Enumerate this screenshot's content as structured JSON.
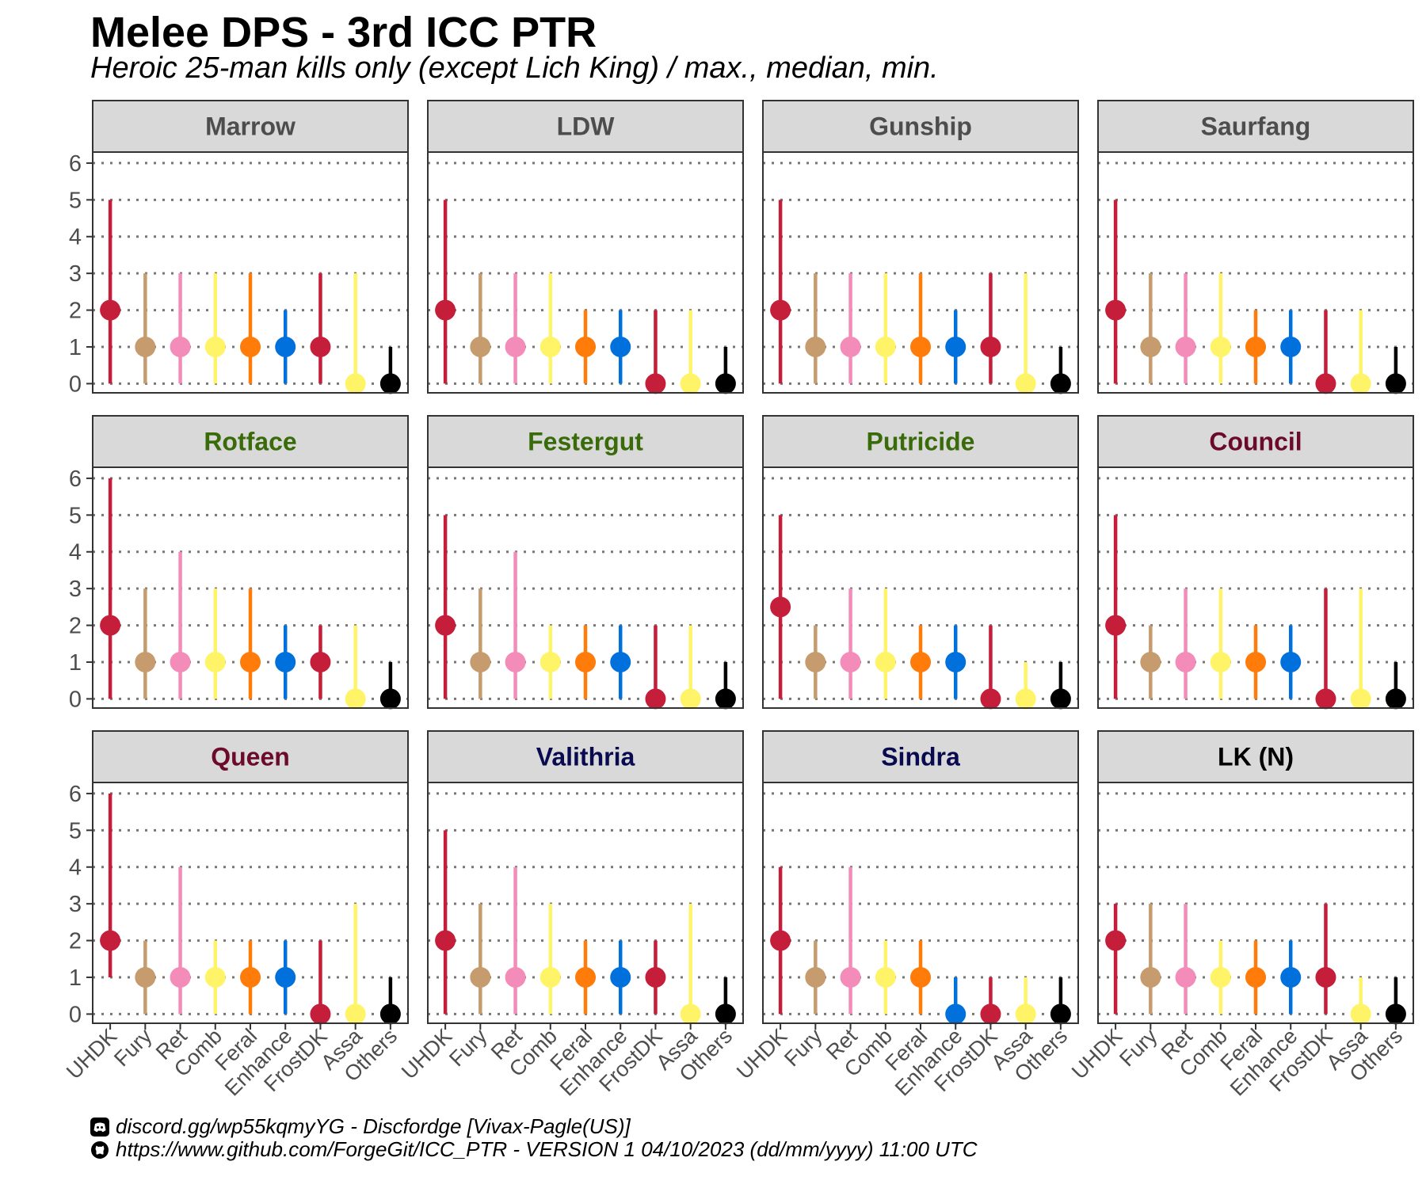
{
  "title": "Melee DPS - 3rd ICC PTR",
  "subtitle": "Heroic 25-man kills only (except Lich King) / max., median, min.",
  "footer": {
    "discord_line": "discord.gg/wp55kqmyYG - Discfordge [Vivax-Pagle(US)]",
    "github_line": "https://www.github.com/ForgeGit/ICC_PTR - VERSION 1 04/10/2023 (dd/mm/yyyy) 11:00 UTC",
    "discord_icon": "discord-icon",
    "github_icon": "github-icon"
  },
  "chart_data": {
    "type": "pointrange",
    "categories": [
      "UHDK",
      "Fury",
      "Ret",
      "Comb",
      "Feral",
      "Enhance",
      "FrostDK",
      "Assa",
      "Others"
    ],
    "category_colors": [
      "#C41E3A",
      "#C69B6D",
      "#F48CBA",
      "#FFF468",
      "#FF7C0A",
      "#0070DD",
      "#C41E3A",
      "#FFF468",
      "#000000"
    ],
    "yticks": [
      0,
      1,
      2,
      3,
      4,
      5,
      6
    ],
    "ylim": [
      -0.25,
      6.3
    ],
    "grid": "dotted horizontal",
    "panels": [
      {
        "name": "Marrow",
        "color": "#4d4d4d",
        "max": [
          5,
          3,
          3,
          3,
          3,
          2,
          3,
          3,
          1
        ],
        "median": [
          2,
          1,
          1,
          1,
          1,
          1,
          1,
          0,
          0
        ],
        "min": [
          0,
          0,
          0,
          0,
          0,
          0,
          0,
          0,
          0
        ]
      },
      {
        "name": "LDW",
        "color": "#4d4d4d",
        "max": [
          5,
          3,
          3,
          3,
          2,
          2,
          2,
          2,
          1
        ],
        "median": [
          2,
          1,
          1,
          1,
          1,
          1,
          0,
          0,
          0
        ],
        "min": [
          0,
          0,
          0,
          0,
          0,
          0,
          0,
          0,
          0
        ]
      },
      {
        "name": "Gunship",
        "color": "#4d4d4d",
        "max": [
          5,
          3,
          3,
          3,
          3,
          2,
          3,
          3,
          1
        ],
        "median": [
          2,
          1,
          1,
          1,
          1,
          1,
          1,
          0,
          0
        ],
        "min": [
          0,
          0,
          0,
          0,
          0,
          0,
          0,
          0,
          0
        ]
      },
      {
        "name": "Saurfang",
        "color": "#4d4d4d",
        "max": [
          5,
          3,
          3,
          3,
          2,
          2,
          2,
          2,
          1
        ],
        "median": [
          2,
          1,
          1,
          1,
          1,
          1,
          0,
          0,
          0
        ],
        "min": [
          0,
          0,
          0,
          0,
          0,
          0,
          0,
          0,
          0
        ]
      },
      {
        "name": "Rotface",
        "color": "#3A6B0A",
        "max": [
          6,
          3,
          4,
          3,
          3,
          2,
          2,
          2,
          1
        ],
        "median": [
          2,
          1,
          1,
          1,
          1,
          1,
          1,
          0,
          0
        ],
        "min": [
          0,
          0,
          0,
          0,
          0,
          0,
          0,
          0,
          0
        ]
      },
      {
        "name": "Festergut",
        "color": "#3A6B0A",
        "max": [
          5,
          3,
          4,
          2,
          2,
          2,
          2,
          2,
          1
        ],
        "median": [
          2,
          1,
          1,
          1,
          1,
          1,
          0,
          0,
          0
        ],
        "min": [
          0,
          0,
          0,
          0,
          0,
          0,
          0,
          0,
          0
        ]
      },
      {
        "name": "Putricide",
        "color": "#3A6B0A",
        "max": [
          5,
          2,
          3,
          3,
          2,
          2,
          2,
          1,
          1
        ],
        "median": [
          2.5,
          1,
          1,
          1,
          1,
          1,
          0,
          0,
          0
        ],
        "min": [
          0,
          0,
          0,
          0,
          0,
          0,
          0,
          0,
          0
        ]
      },
      {
        "name": "Council",
        "color": "#6B0A2A",
        "max": [
          5,
          2,
          3,
          3,
          2,
          2,
          3,
          3,
          1
        ],
        "median": [
          2,
          1,
          1,
          1,
          1,
          1,
          0,
          0,
          0
        ],
        "min": [
          0,
          0,
          0,
          0,
          0,
          0,
          0,
          0,
          0
        ]
      },
      {
        "name": "Queen",
        "color": "#6B0A2A",
        "max": [
          6,
          2,
          4,
          2,
          2,
          2,
          2,
          3,
          1
        ],
        "median": [
          2,
          1,
          1,
          1,
          1,
          1,
          0,
          0,
          0
        ],
        "min": [
          1,
          0,
          0,
          0,
          0,
          0,
          0,
          0,
          0
        ]
      },
      {
        "name": "Valithria",
        "color": "#0A0A50",
        "max": [
          5,
          3,
          4,
          3,
          2,
          2,
          2,
          3,
          1
        ],
        "median": [
          2,
          1,
          1,
          1,
          1,
          1,
          1,
          0,
          0
        ],
        "min": [
          0,
          0,
          0,
          0,
          0,
          0,
          0,
          0,
          0
        ]
      },
      {
        "name": "Sindra",
        "color": "#0A0A50",
        "max": [
          4,
          2,
          4,
          2,
          2,
          1,
          1,
          1,
          1
        ],
        "median": [
          2,
          1,
          1,
          1,
          1,
          0,
          0,
          0,
          0
        ],
        "min": [
          0,
          0,
          0,
          0,
          0,
          0,
          0,
          0,
          0
        ]
      },
      {
        "name": "LK (N)",
        "color": "#000000",
        "max": [
          3,
          3,
          3,
          2,
          2,
          2,
          3,
          1,
          1
        ],
        "median": [
          2,
          1,
          1,
          1,
          1,
          1,
          1,
          0,
          0
        ],
        "min": [
          0,
          0,
          0,
          0,
          0,
          0,
          0,
          0,
          0
        ]
      }
    ]
  }
}
